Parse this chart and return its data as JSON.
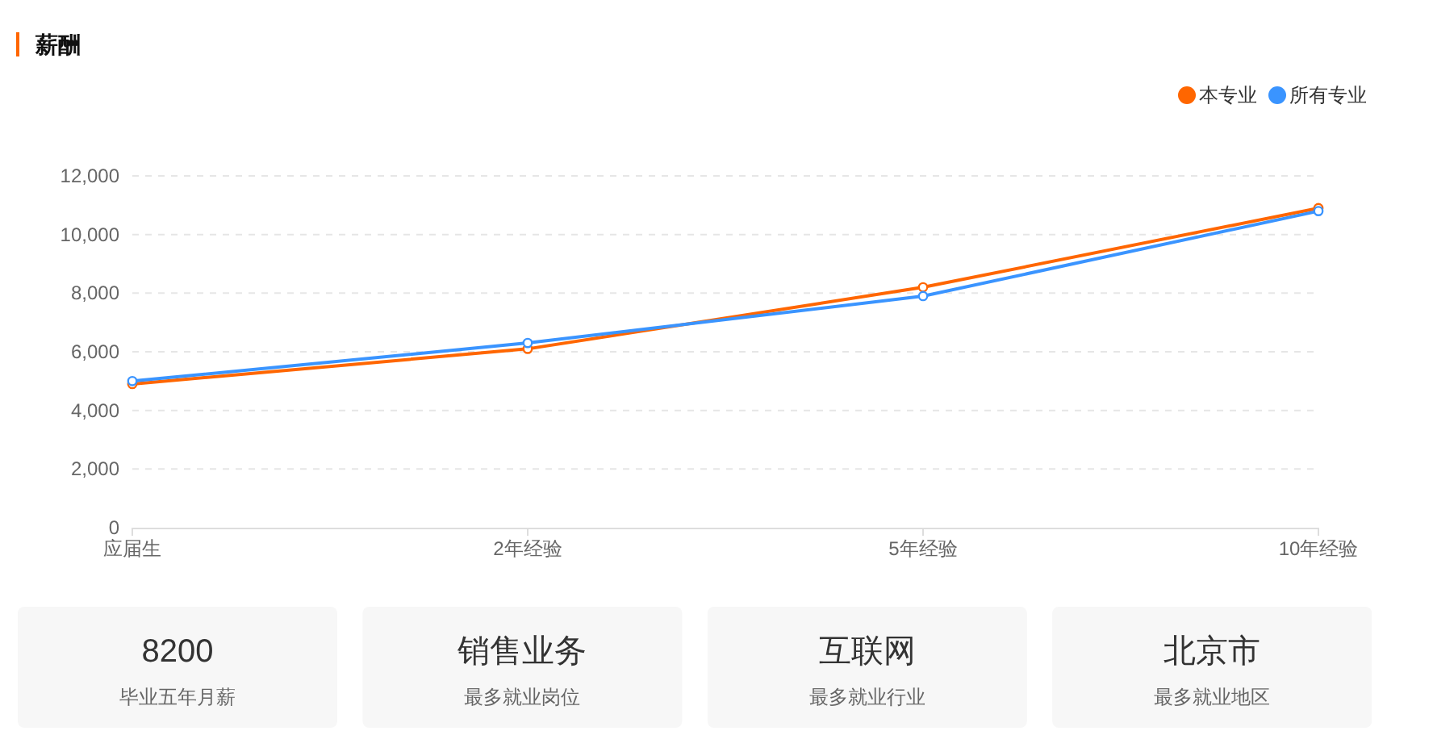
{
  "chart_data": [
    {
      "type": "line",
      "title": "薪酬",
      "categories": [
        "应届生",
        "2年经验",
        "5年经验",
        "10年经验"
      ],
      "series": [
        {
          "name": "本专业",
          "color": "#ff6600",
          "values": [
            4900,
            6100,
            8200,
            10900
          ]
        },
        {
          "name": "所有专业",
          "color": "#3a94ff",
          "values": [
            5000,
            6300,
            7900,
            10800
          ]
        }
      ],
      "ylim": [
        0,
        12000
      ],
      "yticks": [
        0,
        {
          "value": 2000,
          "label": "2,000"
        },
        {
          "value": 4000,
          "label": "4,000"
        },
        {
          "value": 6000,
          "label": "6,000"
        },
        {
          "value": 8000,
          "label": "8,000"
        },
        {
          "value": 10000,
          "label": "10,000"
        },
        {
          "value": 12000,
          "label": "12,000"
        }
      ],
      "grid": "y",
      "legend": "top right",
      "marker": "circle",
      "line_style": "solid"
    },
    {
      "type": "other",
      "title": "8200",
      "subtitle": "毕业五年月薪"
    },
    {
      "type": "other",
      "title": "销售业务",
      "subtitle": "最多就业岗位"
    },
    {
      "type": "other",
      "title": "互联网",
      "subtitle": "最多就业行业"
    },
    {
      "type": "other",
      "title": "北京市",
      "subtitle": "最多就业地区"
    }
  ]
}
